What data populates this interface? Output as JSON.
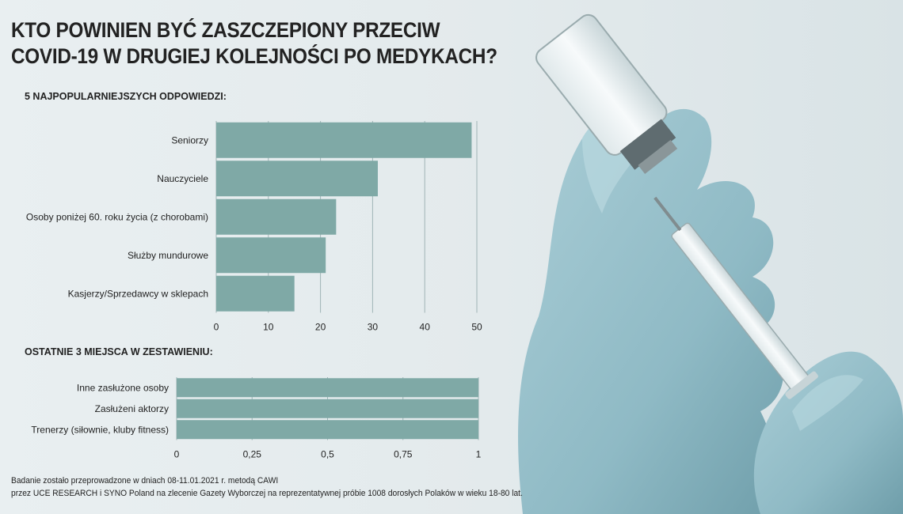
{
  "title_lines": [
    "KTO POWINIEN BYĆ ZASZCZEPIONY PRZECIW",
    "COVID-19 W DRUGIEJ KOLEJNOŚCI PO MEDYKACH?"
  ],
  "colors": {
    "bar": "#7fa9a6",
    "grid": "#9fb4b6",
    "text": "#222222"
  },
  "chart_data": [
    {
      "type": "bar",
      "orientation": "horizontal",
      "title": "5 NAJPOPULARNIEJSZYCH ODPOWIEDZI:",
      "categories": [
        "Seniorzy",
        "Nauczyciele",
        "Osoby poniżej 60. roku życia (z chorobami)",
        "Służby mundurowe",
        "Kasjerzy/Sprzedawcy w sklepach"
      ],
      "values": [
        49,
        31,
        23,
        21,
        15
      ],
      "xlim": [
        0,
        50
      ],
      "ticks": [
        0,
        10,
        20,
        30,
        40,
        50
      ],
      "tick_labels": [
        "0",
        "10",
        "20",
        "30",
        "40",
        "50"
      ],
      "grid": true
    },
    {
      "type": "bar",
      "orientation": "horizontal",
      "title": "OSTATNIE 3 MIEJSCA W ZESTAWIENIU:",
      "categories": [
        "Inne zasłużone osoby",
        "Zasłużeni aktorzy",
        "Trenerzy (siłownie, kluby fitness)"
      ],
      "values": [
        1,
        1,
        1
      ],
      "xlim": [
        0,
        1
      ],
      "ticks": [
        0,
        0.25,
        0.5,
        0.75,
        1
      ],
      "tick_labels": [
        "0",
        "0,25",
        "0,5",
        "0,75",
        "1"
      ],
      "grid": true
    }
  ],
  "footnote_lines": [
    "Badanie zostało przeprowadzone w dniach 08-11.01.2021 r. metodą CAWI",
    "przez UCE RESEARCH i SYNO Poland na zlecenie Gazety Wyborczej na reprezentatywnej próbie 1008 dorosłych Polaków w wieku 18-80 lat."
  ]
}
